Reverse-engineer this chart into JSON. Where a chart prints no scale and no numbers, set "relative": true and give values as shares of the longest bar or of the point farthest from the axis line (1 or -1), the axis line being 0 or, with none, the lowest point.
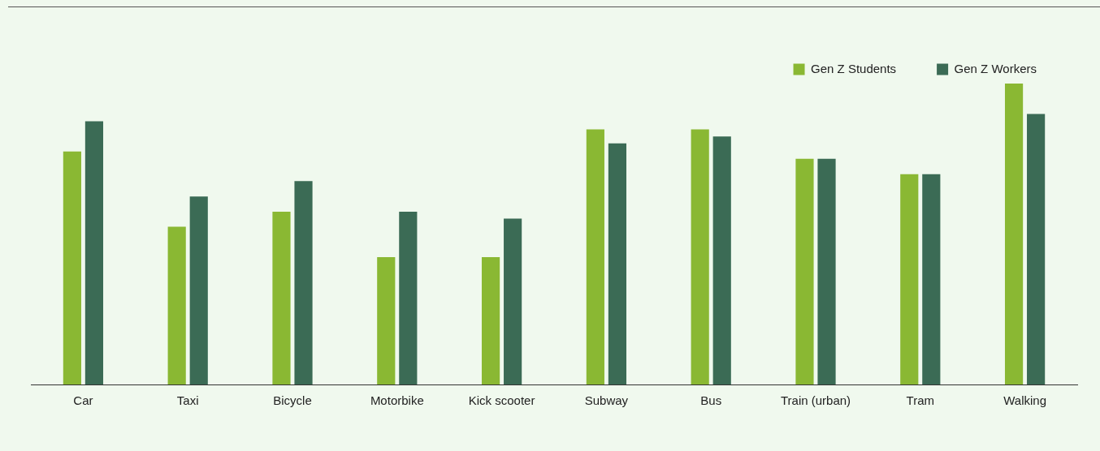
{
  "chart_data": {
    "type": "bar",
    "relative": true,
    "legend": "top right",
    "categories": [
      "Car",
      "Taxi",
      "Bicycle",
      "Motorbike",
      "Kick scooter",
      "Subway",
      "Bus",
      "Train (urban)",
      "Tram",
      "Walking"
    ],
    "series": [
      {
        "name": "Gen Z Students",
        "color": "#8ab833",
        "values": [
          0.774,
          0.524,
          0.574,
          0.423,
          0.423,
          0.848,
          0.848,
          0.75,
          0.699,
          1
        ]
      },
      {
        "name": "Gen Z Workers",
        "color": "#3b6b55",
        "values": [
          0.875,
          0.625,
          0.676,
          0.574,
          0.551,
          0.801,
          0.824,
          0.75,
          0.699,
          0.899
        ]
      }
    ]
  }
}
